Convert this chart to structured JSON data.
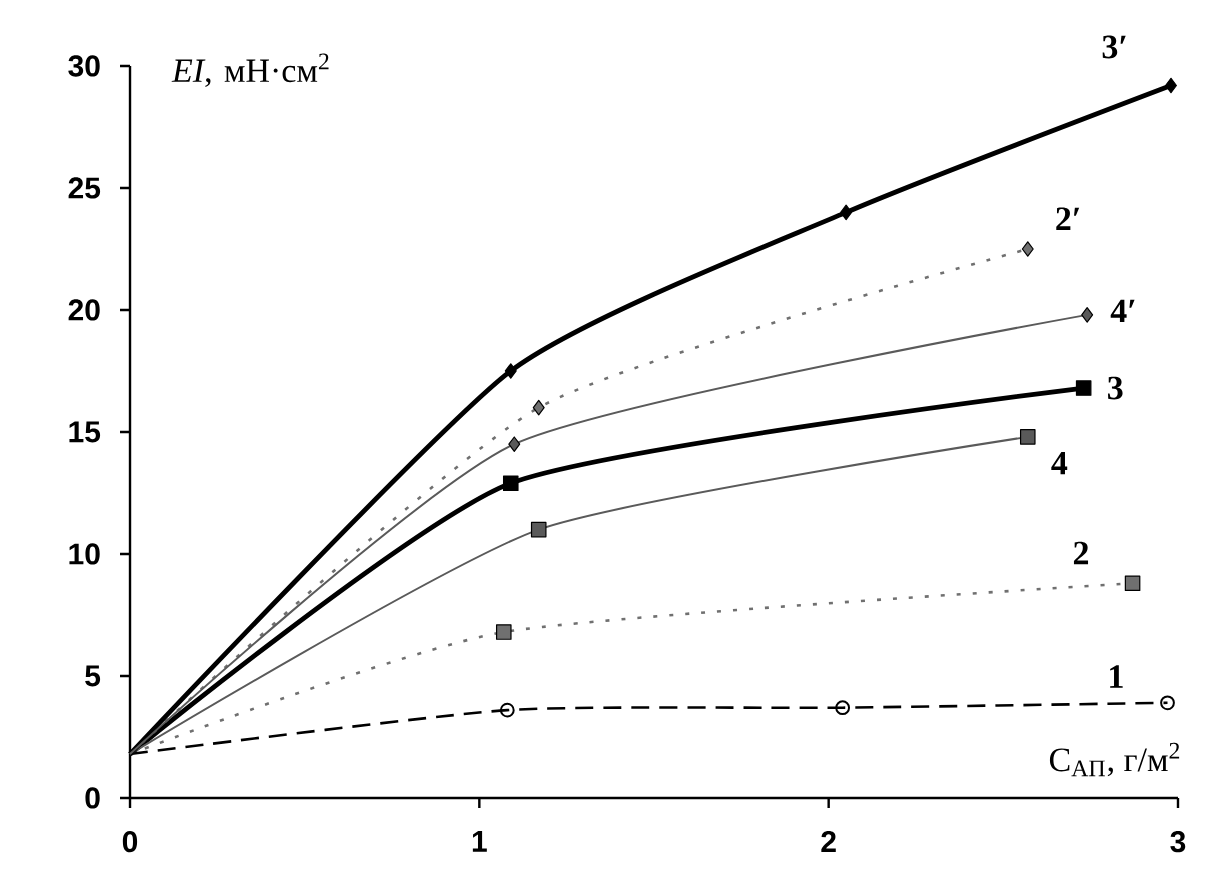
{
  "chart_data": {
    "type": "line",
    "xlabel": "С$_{АП}$, г/м$^{2}$",
    "ylabel": "*EI*, мН·см$^{2}$",
    "xlim": [
      0,
      3
    ],
    "ylim": [
      0,
      30
    ],
    "xticks": [
      0,
      1,
      2,
      3
    ],
    "yticks": [
      0,
      5,
      10,
      15,
      20,
      25,
      30
    ],
    "grid": false,
    "legend": false,
    "series": [
      {
        "name": "1",
        "color": "#000000",
        "marker": "circle",
        "line_style": "dashed",
        "x": [
          0,
          1.08,
          2.04,
          2.97
        ],
        "values": [
          1.8,
          3.6,
          3.7,
          3.9
        ]
      },
      {
        "name": "2",
        "color": "#707070",
        "marker": "square",
        "line_style": "dotted",
        "x": [
          0,
          1.07,
          2.87
        ],
        "values": [
          1.8,
          6.8,
          8.8
        ]
      },
      {
        "name": "3",
        "color": "#000000",
        "marker": "square",
        "line_style": "solid",
        "x": [
          0,
          1.09,
          2.73
        ],
        "values": [
          1.8,
          12.9,
          16.8
        ]
      },
      {
        "name": "4",
        "color": "#5a5a5a",
        "marker": "square",
        "line_style": "solid",
        "x": [
          0,
          1.17,
          2.57
        ],
        "values": [
          1.8,
          11.0,
          14.8
        ]
      },
      {
        "name": "2′",
        "color": "#707070",
        "marker": "diamond",
        "line_style": "dotted",
        "x": [
          0,
          1.17,
          2.57
        ],
        "values": [
          1.8,
          16.0,
          22.5
        ]
      },
      {
        "name": "3′",
        "color": "#000000",
        "marker": "diamond",
        "line_style": "solid",
        "x": [
          0,
          1.09,
          2.05,
          2.98
        ],
        "values": [
          1.8,
          17.5,
          24.0,
          29.2
        ]
      },
      {
        "name": "4′",
        "color": "#5a5a5a",
        "marker": "diamond",
        "line_style": "solid",
        "x": [
          0,
          1.1,
          2.74
        ],
        "values": [
          1.8,
          14.5,
          19.8
        ]
      }
    ]
  }
}
